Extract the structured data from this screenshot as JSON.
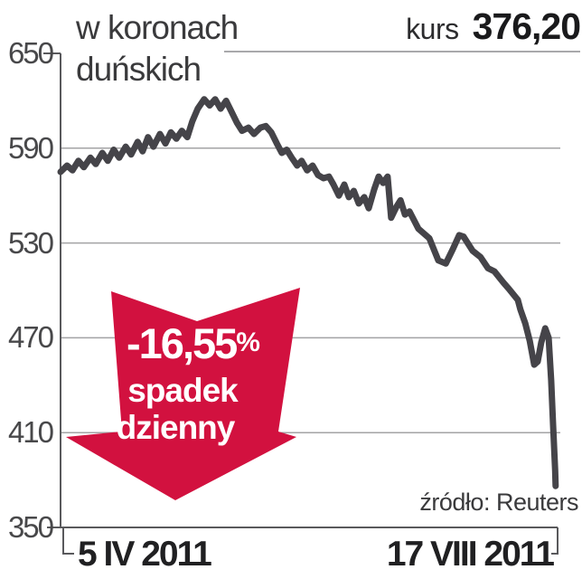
{
  "header": {
    "title_line1": "w koronach",
    "title_line2": "duńskich",
    "kurs_label": "kurs",
    "kurs_value": "376,20"
  },
  "badge": {
    "percent_value": "-16,55",
    "percent_sign": "%",
    "line1": "spadek",
    "line2": "dzienny"
  },
  "source_label": "źródło: Reuters",
  "colors": {
    "accent_red": "#d2113f",
    "line": "#454449",
    "grid": "#a3a3a5",
    "axis": "#59595c",
    "text_dark": "#3a3a3c",
    "text_black": "#1a1a1c"
  },
  "chart_data": {
    "type": "line",
    "title": "w koronach duńskich",
    "unit": "korony duńskie (DKK)",
    "current_value": 376.2,
    "daily_change_percent": -16.55,
    "source": "Reuters",
    "x_start_label": "5 IV 2011",
    "x_end_label": "17 VIII 2011",
    "ylim": [
      350,
      650
    ],
    "yticks": [
      "650",
      "590",
      "530",
      "470",
      "410",
      "350"
    ],
    "ytick_values": [
      650,
      590,
      530,
      470,
      410,
      350
    ],
    "gridline_values": [
      590,
      530,
      470,
      410
    ],
    "grid": true,
    "legend_position": "none",
    "series": [
      {
        "name": "kurs",
        "points": [
          [
            0,
            575
          ],
          [
            0.013,
            579
          ],
          [
            0.024,
            576
          ],
          [
            0.036,
            582
          ],
          [
            0.047,
            578
          ],
          [
            0.06,
            584
          ],
          [
            0.071,
            580
          ],
          [
            0.084,
            587
          ],
          [
            0.095,
            582
          ],
          [
            0.107,
            589
          ],
          [
            0.118,
            584
          ],
          [
            0.131,
            591
          ],
          [
            0.142,
            586
          ],
          [
            0.155,
            594
          ],
          [
            0.165,
            588
          ],
          [
            0.176,
            597
          ],
          [
            0.187,
            591
          ],
          [
            0.2,
            599
          ],
          [
            0.211,
            593
          ],
          [
            0.222,
            600
          ],
          [
            0.233,
            596
          ],
          [
            0.244,
            601
          ],
          [
            0.255,
            597
          ],
          [
            0.265,
            607
          ],
          [
            0.276,
            615
          ],
          [
            0.289,
            621
          ],
          [
            0.3,
            617
          ],
          [
            0.311,
            621
          ],
          [
            0.322,
            615
          ],
          [
            0.333,
            620
          ],
          [
            0.344,
            613
          ],
          [
            0.355,
            606
          ],
          [
            0.365,
            601
          ],
          [
            0.378,
            603
          ],
          [
            0.389,
            599
          ],
          [
            0.402,
            603
          ],
          [
            0.413,
            604
          ],
          [
            0.424,
            600
          ],
          [
            0.435,
            593
          ],
          [
            0.445,
            587
          ],
          [
            0.455,
            589
          ],
          [
            0.465,
            584
          ],
          [
            0.476,
            579
          ],
          [
            0.485,
            582
          ],
          [
            0.496,
            576
          ],
          [
            0.507,
            579
          ],
          [
            0.518,
            573
          ],
          [
            0.529,
            571
          ],
          [
            0.54,
            572
          ],
          [
            0.549,
            567
          ],
          [
            0.56,
            560
          ],
          [
            0.571,
            567
          ],
          [
            0.58,
            559
          ],
          [
            0.59,
            563
          ],
          [
            0.6,
            555
          ],
          [
            0.611,
            559
          ],
          [
            0.62,
            552
          ],
          [
            0.631,
            564
          ],
          [
            0.64,
            572
          ],
          [
            0.649,
            568
          ],
          [
            0.658,
            572
          ],
          [
            0.665,
            546
          ],
          [
            0.676,
            553
          ],
          [
            0.684,
            557
          ],
          [
            0.693,
            548
          ],
          [
            0.702,
            550
          ],
          [
            0.72,
            539
          ],
          [
            0.742,
            533
          ],
          [
            0.76,
            519
          ],
          [
            0.775,
            517
          ],
          [
            0.789,
            526
          ],
          [
            0.802,
            535
          ],
          [
            0.811,
            534
          ],
          [
            0.829,
            525
          ],
          [
            0.845,
            521
          ],
          [
            0.86,
            514
          ],
          [
            0.873,
            512
          ],
          [
            0.891,
            505
          ],
          [
            0.902,
            501
          ],
          [
            0.92,
            494
          ],
          [
            0.925,
            488
          ],
          [
            0.935,
            479
          ],
          [
            0.944,
            468
          ],
          [
            0.953,
            453
          ],
          [
            0.96,
            455
          ],
          [
            0.967,
            467
          ],
          [
            0.975,
            476
          ],
          [
            0.982,
            470
          ],
          [
            0.987,
            443
          ],
          [
            0.991,
            415
          ],
          [
            0.995,
            386
          ],
          [
            0.996,
            376.2
          ]
        ]
      }
    ]
  }
}
